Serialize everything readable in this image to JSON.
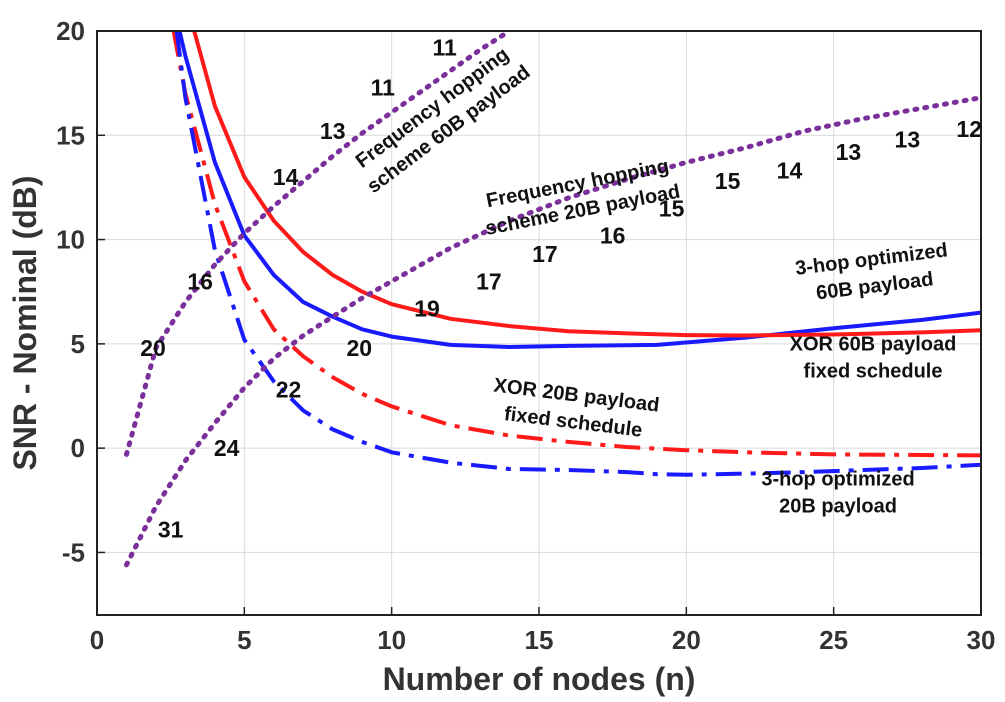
{
  "chart_data": {
    "type": "line",
    "title": "",
    "xlabel": "Number of nodes (n)",
    "ylabel": "SNR - Nominal (dB)",
    "xlim": [
      0,
      30
    ],
    "ylim": [
      -8,
      20
    ],
    "xticks": [
      0,
      5,
      10,
      15,
      20,
      25,
      30
    ],
    "yticks": [
      -5,
      0,
      5,
      10,
      15,
      20
    ],
    "grid": true,
    "legend": "none (inline annotations)",
    "series": [
      {
        "name": "3-hop optimized 60B payload",
        "color": "#1a1aff",
        "style": "solid",
        "x": [
          2.8,
          3,
          4,
          5,
          6,
          7,
          8,
          9,
          10,
          12,
          14,
          16,
          19,
          22,
          25,
          28,
          30
        ],
        "y": [
          20,
          18.8,
          13.7,
          10.2,
          8.3,
          7.0,
          6.3,
          5.7,
          5.35,
          4.95,
          4.85,
          4.9,
          4.95,
          5.3,
          5.75,
          6.15,
          6.5
        ]
      },
      {
        "name": "XOR 60B payload fixed schedule",
        "color": "#ff1a1a",
        "style": "solid",
        "x": [
          3.3,
          4,
          5,
          6,
          7,
          8,
          9,
          10,
          12,
          14,
          16,
          18,
          20,
          22,
          25,
          28,
          30
        ],
        "y": [
          20,
          16.4,
          13.0,
          10.9,
          9.4,
          8.3,
          7.5,
          6.9,
          6.2,
          5.85,
          5.6,
          5.5,
          5.42,
          5.4,
          5.45,
          5.55,
          5.65
        ]
      },
      {
        "name": "XOR 20B payload fixed schedule",
        "color": "#ff1a1a",
        "style": "dashdot",
        "x": [
          2.6,
          3,
          4,
          5,
          6,
          7,
          8,
          9,
          10,
          12,
          14,
          16,
          18,
          20,
          22,
          25,
          28,
          30
        ],
        "y": [
          20,
          17.0,
          11.7,
          8.0,
          5.7,
          4.4,
          3.4,
          2.6,
          2.0,
          1.1,
          0.6,
          0.3,
          0.05,
          -0.1,
          -0.2,
          -0.3,
          -0.33,
          -0.35
        ]
      },
      {
        "name": "3-hop optimized 20B payload",
        "color": "#1a1aff",
        "style": "dashdot",
        "x": [
          2.7,
          3,
          4,
          5,
          6,
          7,
          8,
          9,
          10,
          12,
          14,
          16,
          18,
          19,
          20,
          22,
          24,
          26,
          28,
          30
        ],
        "y": [
          20,
          16.8,
          9.5,
          5.2,
          3.2,
          1.8,
          0.9,
          0.3,
          -0.2,
          -0.7,
          -1.0,
          -1.05,
          -1.15,
          -1.25,
          -1.28,
          -1.22,
          -1.15,
          -1.05,
          -0.95,
          -0.8
        ]
      },
      {
        "name": "Frequency hopping scheme 60B payload",
        "color": "#7a2f9a",
        "style": "dotted",
        "x": [
          1,
          2,
          3,
          4,
          5,
          6,
          7,
          8,
          9,
          10,
          11,
          12,
          13,
          14
        ],
        "y": [
          -0.3,
          4.8,
          7.0,
          8.8,
          10.3,
          11.6,
          12.8,
          14.0,
          15.1,
          16.1,
          17.1,
          18.1,
          19.1,
          20.0
        ]
      },
      {
        "name": "Frequency hopping scheme 20B payload",
        "color": "#7a2f9a",
        "style": "dotted",
        "x": [
          1,
          2,
          3,
          4,
          5,
          6,
          7,
          8,
          9,
          10,
          12,
          14,
          16,
          18,
          20,
          22,
          24,
          26,
          28,
          30
        ],
        "y": [
          -5.6,
          -2.8,
          -0.6,
          1.2,
          2.9,
          4.3,
          5.4,
          6.3,
          7.2,
          8.0,
          9.6,
          10.9,
          12.0,
          12.9,
          13.7,
          14.4,
          15.2,
          15.8,
          16.3,
          16.8
        ]
      }
    ],
    "annotations": [
      {
        "lines": [
          "3-hop optimized",
          "60B payload"
        ]
      },
      {
        "lines": [
          "XOR 60B payload",
          "fixed schedule"
        ]
      },
      {
        "lines": [
          "XOR 20B payload",
          "fixed schedule"
        ]
      },
      {
        "lines": [
          "3-hop optimized",
          "20B payload"
        ]
      },
      {
        "lines": [
          "Frequency hopping",
          "scheme 60B payload"
        ]
      },
      {
        "lines": [
          "Frequency hopping",
          "scheme 20B payload"
        ]
      }
    ],
    "point_labels": [
      {
        "text": "11",
        "x": 11.8,
        "y": 19.2
      },
      {
        "text": "11",
        "x": 9.7,
        "y": 17.3
      },
      {
        "text": "13",
        "x": 8.0,
        "y": 15.2
      },
      {
        "text": "14",
        "x": 6.4,
        "y": 13.0
      },
      {
        "text": "16",
        "x": 3.5,
        "y": 8.0
      },
      {
        "text": "20",
        "x": 1.9,
        "y": 4.8
      },
      {
        "text": "12",
        "x": 29.6,
        "y": 15.3
      },
      {
        "text": "13",
        "x": 27.5,
        "y": 14.8
      },
      {
        "text": "13",
        "x": 25.5,
        "y": 14.2
      },
      {
        "text": "14",
        "x": 23.5,
        "y": 13.3
      },
      {
        "text": "15",
        "x": 21.4,
        "y": 12.8
      },
      {
        "text": "15",
        "x": 19.5,
        "y": 11.5
      },
      {
        "text": "16",
        "x": 17.5,
        "y": 10.2
      },
      {
        "text": "17",
        "x": 15.2,
        "y": 9.3
      },
      {
        "text": "17",
        "x": 13.3,
        "y": 8.0
      },
      {
        "text": "19",
        "x": 11.2,
        "y": 6.7
      },
      {
        "text": "20",
        "x": 8.9,
        "y": 4.8
      },
      {
        "text": "22",
        "x": 6.5,
        "y": 2.8
      },
      {
        "text": "24",
        "x": 4.4,
        "y": 0.0
      },
      {
        "text": "31",
        "x": 2.5,
        "y": -3.9
      }
    ]
  }
}
